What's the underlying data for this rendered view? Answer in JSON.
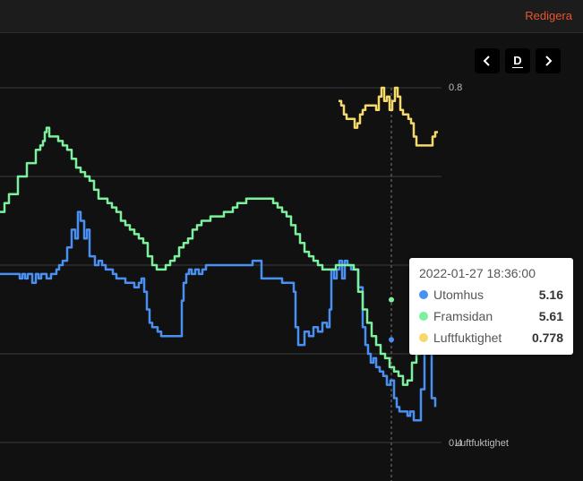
{
  "header": {
    "edit_label": "Redigera"
  },
  "controls": {
    "period_label": "D"
  },
  "colors": {
    "utomhus": "#4a90f2",
    "framsidan": "#7cf09c",
    "luftfuktighet": "#f5d96b",
    "grid": "#3a3a3a",
    "axis_text": "#bdbdbd"
  },
  "tooltip": {
    "time": "2022-01-27 18:36:00",
    "rows": [
      {
        "name": "Utomhus",
        "value": "5.16"
      },
      {
        "name": "Framsidan",
        "value": "5.61"
      },
      {
        "name": "Luftfuktighet",
        "value": "0.778"
      }
    ]
  },
  "chart_data": {
    "type": "line",
    "y_axis_right": {
      "name": "Luftfuktighet",
      "ticks": [
        "0.8",
        "0.4"
      ],
      "range": [
        0.4,
        0.8
      ]
    },
    "series": [
      {
        "name": "Utomhus",
        "x": [
          0,
          10,
          20,
          22,
          25,
          28,
          31,
          36,
          40,
          43,
          46,
          52,
          57,
          60,
          63,
          66,
          70,
          75,
          80,
          84,
          87,
          90,
          94,
          97,
          100,
          103,
          106,
          110,
          114,
          118,
          122,
          126,
          130,
          135,
          140,
          145,
          150,
          155,
          158,
          161,
          164,
          167,
          170,
          173,
          176,
          180,
          185,
          190,
          195,
          200,
          203,
          205,
          208,
          211,
          214,
          218,
          222,
          226,
          230,
          234,
          238,
          242,
          246,
          250,
          254,
          258,
          262,
          266,
          270,
          274,
          278,
          282,
          286,
          289,
          292,
          295,
          300,
          305,
          310,
          315,
          320,
          325,
          328,
          330,
          333,
          336,
          340,
          345,
          350,
          355,
          360,
          365,
          368,
          370,
          373,
          376,
          379,
          382,
          385,
          388,
          392,
          396,
          400,
          405,
          408,
          411,
          414,
          417,
          420,
          424,
          428,
          432,
          436,
          440,
          443,
          446,
          449,
          452,
          455,
          458,
          462,
          466,
          470,
          474,
          478,
          482,
          486
        ],
        "y": [
          5.9,
          5.9,
          5.9,
          5.85,
          5.9,
          5.85,
          5.9,
          5.8,
          5.9,
          5.85,
          5.9,
          5.85,
          5.9,
          5.9,
          5.95,
          6.0,
          6.05,
          6.2,
          6.4,
          6.3,
          6.6,
          6.5,
          6.3,
          6.4,
          6.1,
          6.1,
          6.0,
          6.05,
          6.0,
          5.95,
          5.95,
          5.9,
          5.85,
          5.85,
          5.8,
          5.8,
          5.75,
          5.8,
          5.85,
          5.7,
          5.5,
          5.35,
          5.3,
          5.3,
          5.25,
          5.2,
          5.2,
          5.2,
          5.2,
          5.2,
          5.6,
          5.8,
          5.9,
          5.95,
          5.9,
          5.95,
          5.9,
          5.95,
          6.0,
          6.0,
          6.0,
          6.0,
          6.0,
          6.0,
          6.0,
          6.0,
          6.0,
          6.0,
          6.0,
          6.0,
          6.0,
          6.05,
          6.05,
          6.05,
          5.85,
          5.85,
          5.85,
          5.85,
          5.85,
          5.8,
          5.8,
          5.8,
          5.7,
          5.3,
          5.1,
          5.1,
          5.25,
          5.2,
          5.3,
          5.25,
          5.35,
          5.3,
          5.5,
          5.95,
          5.85,
          5.95,
          6.05,
          5.85,
          6.05,
          6.0,
          5.95,
          5.95,
          5.75,
          5.3,
          5.1,
          5.0,
          4.9,
          4.95,
          4.85,
          4.8,
          4.75,
          4.65,
          4.7,
          4.5,
          4.4,
          4.35,
          4.35,
          4.35,
          4.3,
          4.35,
          4.25,
          4.25,
          4.6,
          5.7,
          5.5,
          4.5,
          4.4
        ]
      },
      {
        "name": "Framsidan",
        "x": [
          0,
          5,
          10,
          15,
          20,
          25,
          30,
          35,
          40,
          45,
          48,
          50,
          52,
          55,
          60,
          65,
          70,
          75,
          80,
          85,
          90,
          95,
          100,
          105,
          110,
          115,
          120,
          125,
          130,
          135,
          140,
          145,
          150,
          155,
          160,
          165,
          170,
          175,
          180,
          185,
          190,
          195,
          200,
          205,
          210,
          215,
          220,
          225,
          230,
          235,
          240,
          245,
          250,
          255,
          260,
          265,
          270,
          275,
          280,
          285,
          290,
          295,
          300,
          305,
          310,
          315,
          320,
          325,
          330,
          335,
          340,
          345,
          350,
          355,
          360,
          365,
          370,
          375,
          380,
          385,
          390,
          395,
          400,
          405,
          410,
          415,
          420,
          425,
          430,
          435,
          440,
          445,
          450,
          455,
          460,
          465,
          470,
          475,
          480
        ],
        "y": [
          6.6,
          6.7,
          6.8,
          6.8,
          7.0,
          7.0,
          7.15,
          7.15,
          7.3,
          7.35,
          7.4,
          7.5,
          7.55,
          7.45,
          7.45,
          7.4,
          7.35,
          7.3,
          7.2,
          7.1,
          7.05,
          7.0,
          6.95,
          6.85,
          6.75,
          6.75,
          6.7,
          6.65,
          6.6,
          6.5,
          6.45,
          6.4,
          6.35,
          6.3,
          6.25,
          6.1,
          6.0,
          5.95,
          5.95,
          6.0,
          6.05,
          6.1,
          6.2,
          6.25,
          6.3,
          6.4,
          6.45,
          6.5,
          6.5,
          6.55,
          6.55,
          6.55,
          6.6,
          6.6,
          6.65,
          6.7,
          6.7,
          6.75,
          6.75,
          6.75,
          6.75,
          6.75,
          6.75,
          6.7,
          6.65,
          6.6,
          6.55,
          6.45,
          6.35,
          6.25,
          6.15,
          6.1,
          6.05,
          6.0,
          5.95,
          5.95,
          5.95,
          6.0,
          6.0,
          6.0,
          6.0,
          5.95,
          5.7,
          5.5,
          5.35,
          5.2,
          5.1,
          5.0,
          4.95,
          4.85,
          4.8,
          4.75,
          4.65,
          4.7,
          4.9,
          5.0,
          5.1,
          5.2,
          5.3
        ]
      },
      {
        "name": "Luftfuktighet",
        "x": [
          378,
          381,
          384,
          387,
          390,
          393,
          396,
          399,
          402,
          405,
          408,
          411,
          414,
          417,
          420,
          423,
          426,
          429,
          432,
          435,
          438,
          441,
          444,
          447,
          450,
          453,
          456,
          459,
          462,
          465,
          468,
          471,
          474,
          477,
          480,
          483,
          486,
          489
        ],
        "y": [
          0.785,
          0.78,
          0.77,
          0.765,
          0.765,
          0.765,
          0.755,
          0.76,
          0.77,
          0.775,
          0.78,
          0.78,
          0.78,
          0.78,
          0.775,
          0.79,
          0.8,
          0.785,
          0.79,
          0.775,
          0.785,
          0.8,
          0.79,
          0.775,
          0.77,
          0.77,
          0.765,
          0.76,
          0.745,
          0.735,
          0.735,
          0.735,
          0.735,
          0.735,
          0.735,
          0.745,
          0.75,
          0.75
        ]
      }
    ],
    "tooltip_x": 437
  }
}
